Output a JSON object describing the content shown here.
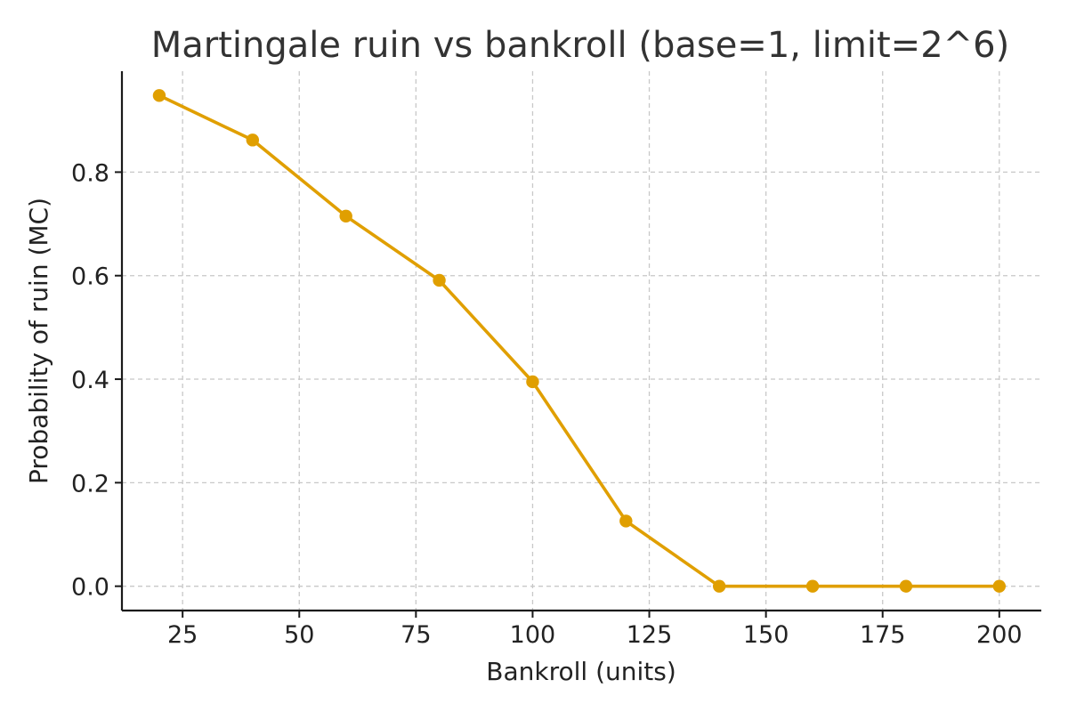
{
  "chart_data": {
    "type": "line",
    "title": "Martingale ruin vs bankroll (base=1, limit=2^6)",
    "xlabel": "Bankroll (units)",
    "ylabel": "Probability of ruin (MC)",
    "x": [
      20,
      40,
      60,
      80,
      100,
      120,
      140,
      160,
      180,
      200
    ],
    "series": [
      {
        "values": [
          0.948,
          0.862,
          0.715,
          0.591,
          0.395,
          0.126,
          0.0,
          0.0,
          0.0,
          0.0
        ],
        "color": "#e09f00"
      }
    ],
    "xlim": [
      12,
      209
    ],
    "ylim": [
      -0.047,
      0.995
    ],
    "xticks": [
      25,
      50,
      75,
      100,
      125,
      150,
      175,
      200
    ],
    "yticks": [
      0.0,
      0.2,
      0.4,
      0.6,
      0.8
    ],
    "ytick_labels": [
      "0.0",
      "0.2",
      "0.4",
      "0.6",
      "0.8"
    ],
    "grid": true,
    "markers": true
  }
}
